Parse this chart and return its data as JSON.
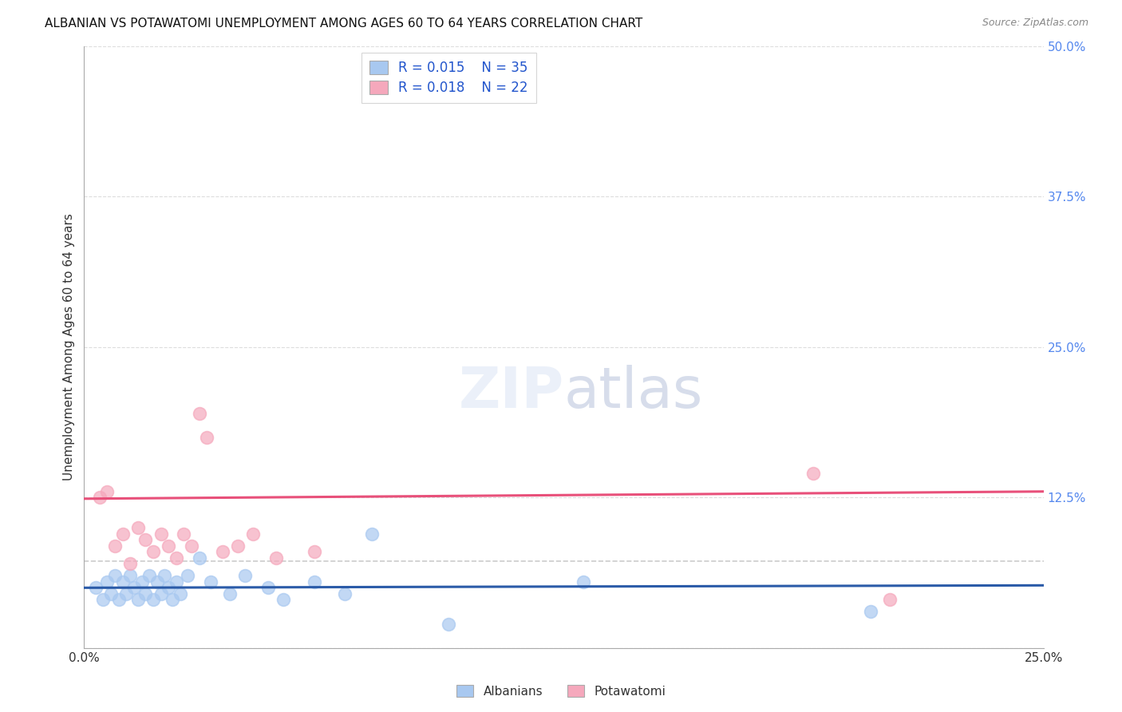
{
  "title": "ALBANIAN VS POTAWATOMI UNEMPLOYMENT AMONG AGES 60 TO 64 YEARS CORRELATION CHART",
  "source": "Source: ZipAtlas.com",
  "ylabel": "Unemployment Among Ages 60 to 64 years",
  "xlim": [
    0.0,
    0.25
  ],
  "ylim": [
    0.0,
    0.5
  ],
  "xticks": [
    0.0,
    0.25
  ],
  "xtick_labels": [
    "0.0%",
    "25.0%"
  ],
  "ytick_labels_right": [
    "50.0%",
    "37.5%",
    "25.0%",
    "12.5%",
    ""
  ],
  "yticks_right": [
    0.5,
    0.375,
    0.25,
    0.125,
    0.0
  ],
  "albanians_R": 0.015,
  "albanians_N": 35,
  "potawatomi_R": 0.018,
  "potawatomi_N": 22,
  "albanian_color": "#A8C8F0",
  "potawatomi_color": "#F5A8BC",
  "albanian_line_color": "#2B5BA8",
  "potawatomi_line_color": "#E8507A",
  "dashed_line_y": 0.072,
  "dashed_line_color": "#CCCCCC",
  "background_color": "#FFFFFF",
  "title_fontsize": 11,
  "watermark": "ZIPatlas",
  "albanians_x": [
    0.003,
    0.005,
    0.006,
    0.007,
    0.008,
    0.009,
    0.01,
    0.011,
    0.012,
    0.013,
    0.014,
    0.015,
    0.016,
    0.017,
    0.018,
    0.019,
    0.02,
    0.021,
    0.022,
    0.023,
    0.024,
    0.025,
    0.027,
    0.03,
    0.033,
    0.038,
    0.042,
    0.048,
    0.052,
    0.06,
    0.068,
    0.075,
    0.095,
    0.13,
    0.205
  ],
  "albanians_y": [
    0.05,
    0.04,
    0.055,
    0.045,
    0.06,
    0.04,
    0.055,
    0.045,
    0.06,
    0.05,
    0.04,
    0.055,
    0.045,
    0.06,
    0.04,
    0.055,
    0.045,
    0.06,
    0.05,
    0.04,
    0.055,
    0.045,
    0.06,
    0.075,
    0.055,
    0.045,
    0.06,
    0.05,
    0.04,
    0.055,
    0.045,
    0.095,
    0.02,
    0.055,
    0.03
  ],
  "potawatomi_x": [
    0.004,
    0.006,
    0.008,
    0.01,
    0.012,
    0.014,
    0.016,
    0.018,
    0.02,
    0.022,
    0.024,
    0.026,
    0.028,
    0.03,
    0.032,
    0.036,
    0.04,
    0.044,
    0.05,
    0.06,
    0.19,
    0.21
  ],
  "potawatomi_y": [
    0.125,
    0.13,
    0.085,
    0.095,
    0.07,
    0.1,
    0.09,
    0.08,
    0.095,
    0.085,
    0.075,
    0.095,
    0.085,
    0.195,
    0.175,
    0.08,
    0.085,
    0.095,
    0.075,
    0.08,
    0.145,
    0.04
  ],
  "albanian_line_y_start": 0.05,
  "albanian_line_y_end": 0.052,
  "potawatomi_line_y_start": 0.124,
  "potawatomi_line_y_end": 0.13,
  "grid_color": "#DDDDDD",
  "grid_yticks": [
    0.0,
    0.125,
    0.25,
    0.375,
    0.5
  ]
}
